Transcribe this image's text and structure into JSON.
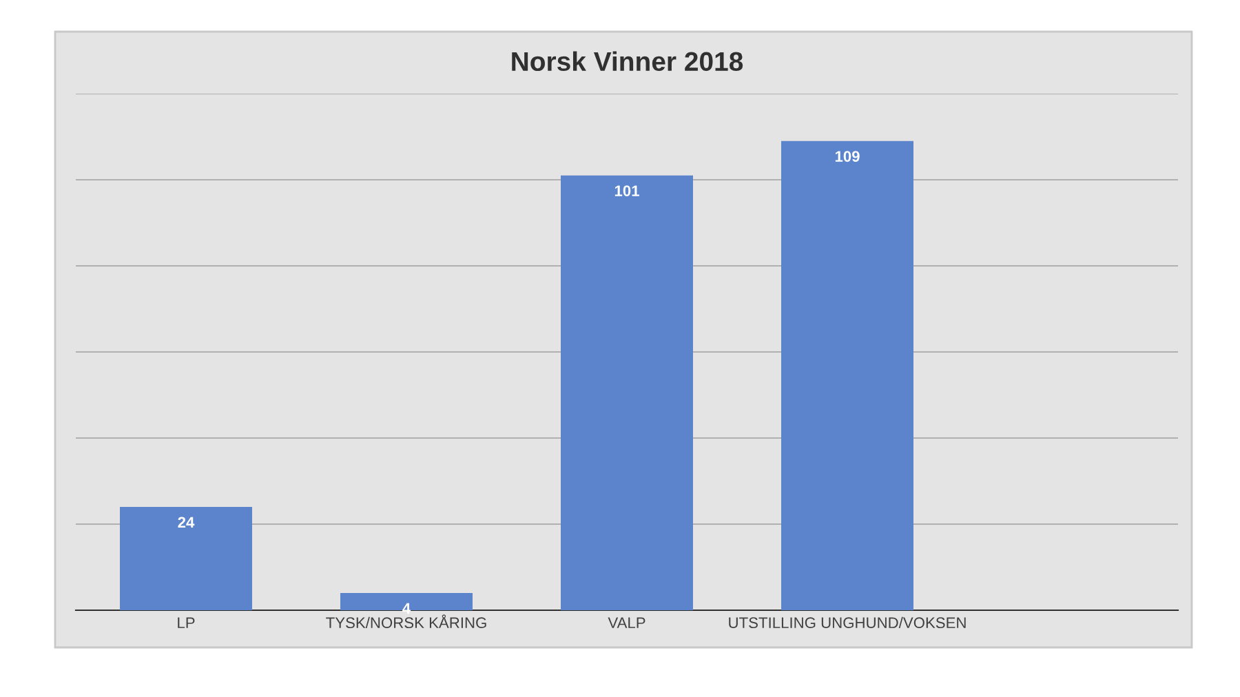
{
  "chart_data": {
    "type": "bar",
    "title": "Norsk Vinner 2018",
    "categories": [
      "LP",
      "TYSK/NORSK KÅRING",
      "VALP",
      "UTSTILLING UNGHUND/VOKSEN",
      null
    ],
    "values": [
      24,
      4,
      101,
      109,
      null
    ],
    "color": "#5b84cc",
    "ylim": [
      0,
      120
    ],
    "yticks": [
      {
        "value": 0,
        "label": null
      },
      {
        "value": 20,
        "label": null
      },
      {
        "value": 40,
        "label": null
      },
      {
        "value": 60,
        "label": null
      },
      {
        "value": 80,
        "label": null
      },
      {
        "value": 100,
        "label": null
      },
      {
        "value": 120,
        "label": null
      }
    ],
    "grid": "y",
    "tick_labels": "x",
    "data_labels": true
  }
}
